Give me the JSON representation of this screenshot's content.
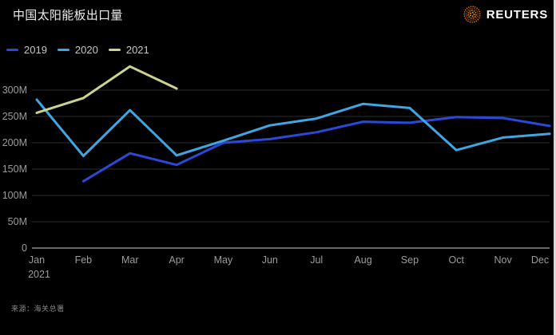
{
  "header": {
    "brand": "REUTERS",
    "brand_color": "#f68b1f",
    "logo_icon": "reuters-dotted-globe",
    "logo_dot_colors": [
      "#f68b1f",
      "#c96c0e",
      "#7a3f08"
    ]
  },
  "source": {
    "label": "来源：海关总署"
  },
  "layout_colors": {
    "background": "#000000",
    "gridline": "#2d2d2d",
    "baseline": "#8a8a8a",
    "tick_text": "#9c9c9c",
    "title_text": "#ededed",
    "edge_border": "#d9d9d9"
  },
  "chart_data": {
    "type": "line",
    "title": "中国太阳能板出口量",
    "unit": "M",
    "categories": [
      "Jan",
      "Feb",
      "Mar",
      "Apr",
      "May",
      "Jun",
      "Jul",
      "Aug",
      "Sep",
      "Oct",
      "Nov",
      "Dec"
    ],
    "x_sublabel": "2021",
    "ylim": [
      0,
      350
    ],
    "yticks": [
      0,
      50,
      100,
      150,
      200,
      250,
      300
    ],
    "ytick_labels": [
      "0",
      "50M",
      "100M",
      "150M",
      "200M",
      "250M",
      "300M"
    ],
    "grid": true,
    "legend_position": "top-left",
    "series": [
      {
        "name": "2019",
        "color": "#2b49d8",
        "values": [
          null,
          127,
          180,
          158,
          200,
          207,
          220,
          240,
          238,
          249,
          247,
          232
        ]
      },
      {
        "name": "2020",
        "color": "#41a5e1",
        "values": [
          282,
          175,
          262,
          176,
          204,
          233,
          246,
          274,
          266,
          186,
          210,
          217
        ]
      },
      {
        "name": "2021",
        "color": "#cdd290",
        "values": [
          257,
          285,
          345,
          303,
          null,
          null,
          null,
          null,
          null,
          null,
          null,
          null
        ]
      }
    ]
  }
}
